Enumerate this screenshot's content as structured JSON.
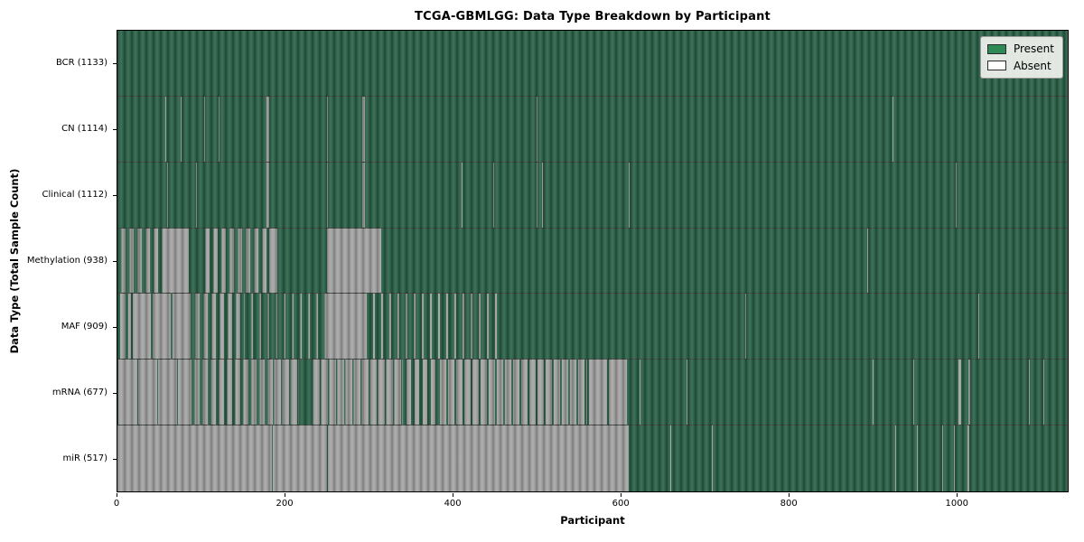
{
  "chart_data": {
    "type": "heatmap",
    "title": "TCGA-GBMLGG: Data Type Breakdown by Participant",
    "xlabel": "Participant",
    "ylabel": "Data Type (Total Sample Count)",
    "x_range": [
      0,
      1133
    ],
    "x_ticks": [
      0,
      200,
      400,
      600,
      800,
      1000
    ],
    "grid": false,
    "legend_position": "upper right",
    "legend": [
      {
        "label": "Present",
        "color": "#2e8b57"
      },
      {
        "label": "Absent",
        "color": "#ffffff"
      }
    ],
    "colors": {
      "present_fill": "#2c6349",
      "absent_fill": "#a6a6a6",
      "row_divider": "#0a0f0a",
      "plot_border": "#000000",
      "legend_present": "#2e8b57",
      "legend_absent": "#ffffff"
    },
    "segment_format": [
      "start_participant",
      "end_participant",
      "state",
      "present_fraction_if_mixed"
    ],
    "rows": [
      {
        "name": "BCR",
        "total": 1133,
        "label": "BCR (1133)",
        "segments": [
          [
            0,
            1133,
            "present"
          ]
        ]
      },
      {
        "name": "CN",
        "total": 1114,
        "label": "CN (1114)",
        "segments": [
          [
            0,
            57,
            "present"
          ],
          [
            57,
            58,
            "absent"
          ],
          [
            58,
            75,
            "present"
          ],
          [
            75,
            76,
            "absent"
          ],
          [
            76,
            103,
            "present"
          ],
          [
            103,
            104,
            "absent"
          ],
          [
            104,
            121,
            "present"
          ],
          [
            121,
            122,
            "absent"
          ],
          [
            122,
            178,
            "present"
          ],
          [
            178,
            181,
            "absent"
          ],
          [
            181,
            250,
            "present"
          ],
          [
            250,
            251,
            "absent"
          ],
          [
            251,
            292,
            "present"
          ],
          [
            292,
            295,
            "absent"
          ],
          [
            295,
            500,
            "present"
          ],
          [
            500,
            501,
            "absent"
          ],
          [
            501,
            924,
            "present"
          ],
          [
            924,
            925,
            "absent"
          ],
          [
            925,
            1133,
            "present"
          ]
        ]
      },
      {
        "name": "Clinical",
        "total": 1112,
        "label": "Clinical (1112)",
        "segments": [
          [
            0,
            59,
            "present"
          ],
          [
            59,
            60,
            "absent"
          ],
          [
            60,
            94,
            "present"
          ],
          [
            94,
            95,
            "absent"
          ],
          [
            95,
            178,
            "present"
          ],
          [
            178,
            181,
            "absent"
          ],
          [
            181,
            250,
            "present"
          ],
          [
            250,
            251,
            "absent"
          ],
          [
            251,
            292,
            "present"
          ],
          [
            292,
            295,
            "absent"
          ],
          [
            295,
            410,
            "present"
          ],
          [
            410,
            411,
            "absent"
          ],
          [
            411,
            448,
            "present"
          ],
          [
            448,
            449,
            "absent"
          ],
          [
            449,
            500,
            "present"
          ],
          [
            500,
            501,
            "absent"
          ],
          [
            501,
            506,
            "present"
          ],
          [
            506,
            507,
            "absent"
          ],
          [
            507,
            610,
            "present"
          ],
          [
            610,
            611,
            "absent"
          ],
          [
            611,
            999,
            "present"
          ],
          [
            999,
            1000,
            "absent"
          ],
          [
            1000,
            1133,
            "present"
          ]
        ]
      },
      {
        "name": "Methylation",
        "total": 938,
        "label": "Methylation (938)",
        "segments": [
          [
            0,
            57,
            "mixed",
            0.5
          ],
          [
            57,
            85,
            "absent"
          ],
          [
            85,
            100,
            "present"
          ],
          [
            100,
            181,
            "mixed",
            0.5
          ],
          [
            181,
            191,
            "absent"
          ],
          [
            191,
            250,
            "present"
          ],
          [
            250,
            314,
            "absent"
          ],
          [
            314,
            894,
            "present"
          ],
          [
            894,
            895,
            "absent"
          ],
          [
            895,
            1133,
            "present"
          ]
        ]
      },
      {
        "name": "MAF",
        "total": 909,
        "label": "MAF (909)",
        "segments": [
          [
            0,
            16,
            "mixed",
            0.35
          ],
          [
            16,
            88,
            "mixed",
            0.08
          ],
          [
            88,
            152,
            "mixed",
            0.5
          ],
          [
            152,
            249,
            "mixed",
            0.85
          ],
          [
            249,
            297,
            "absent"
          ],
          [
            297,
            455,
            "mixed",
            0.8
          ],
          [
            455,
            749,
            "present"
          ],
          [
            749,
            750,
            "absent"
          ],
          [
            750,
            846,
            "present"
          ],
          [
            846,
            847,
            "absent"
          ],
          [
            847,
            1026,
            "present"
          ],
          [
            1026,
            1027,
            "absent"
          ],
          [
            1027,
            1042,
            "present"
          ],
          [
            1042,
            1043,
            "absent"
          ],
          [
            1043,
            1133,
            "present"
          ]
        ]
      },
      {
        "name": "mRNA",
        "total": 677,
        "label": "mRNA (677)",
        "segments": [
          [
            0,
            88,
            "mixed",
            0.04
          ],
          [
            88,
            185,
            "mixed",
            0.4
          ],
          [
            185,
            216,
            "mixed",
            0.15
          ],
          [
            216,
            232,
            "present"
          ],
          [
            232,
            340,
            "mixed",
            0.18
          ],
          [
            340,
            382,
            "mixed",
            0.45
          ],
          [
            382,
            560,
            "mixed",
            0.22
          ],
          [
            560,
            609,
            "mixed",
            0.1
          ],
          [
            609,
            623,
            "present"
          ],
          [
            623,
            624,
            "absent"
          ],
          [
            624,
            679,
            "present"
          ],
          [
            679,
            680,
            "absent"
          ],
          [
            680,
            900,
            "present"
          ],
          [
            900,
            901,
            "absent"
          ],
          [
            901,
            949,
            "present"
          ],
          [
            949,
            950,
            "absent"
          ],
          [
            950,
            1003,
            "present"
          ],
          [
            1003,
            1006,
            "absent"
          ],
          [
            1006,
            1015,
            "present"
          ],
          [
            1015,
            1017,
            "absent"
          ],
          [
            1017,
            1087,
            "present"
          ],
          [
            1087,
            1088,
            "absent"
          ],
          [
            1088,
            1104,
            "present"
          ],
          [
            1104,
            1105,
            "absent"
          ],
          [
            1105,
            1133,
            "present"
          ]
        ]
      },
      {
        "name": "miR",
        "total": 517,
        "label": "miR (517)",
        "segments": [
          [
            0,
            184,
            "absent"
          ],
          [
            184,
            185,
            "present"
          ],
          [
            185,
            250,
            "absent"
          ],
          [
            250,
            251,
            "present"
          ],
          [
            251,
            610,
            "absent"
          ],
          [
            610,
            659,
            "present"
          ],
          [
            659,
            660,
            "absent"
          ],
          [
            660,
            709,
            "present"
          ],
          [
            709,
            710,
            "absent"
          ],
          [
            710,
            927,
            "present"
          ],
          [
            927,
            928,
            "absent"
          ],
          [
            928,
            953,
            "present"
          ],
          [
            953,
            954,
            "absent"
          ],
          [
            954,
            983,
            "present"
          ],
          [
            983,
            984,
            "absent"
          ],
          [
            984,
            997,
            "present"
          ],
          [
            997,
            998,
            "absent"
          ],
          [
            998,
            1013,
            "present"
          ],
          [
            1013,
            1016,
            "absent"
          ],
          [
            1016,
            1133,
            "present"
          ]
        ]
      }
    ]
  }
}
